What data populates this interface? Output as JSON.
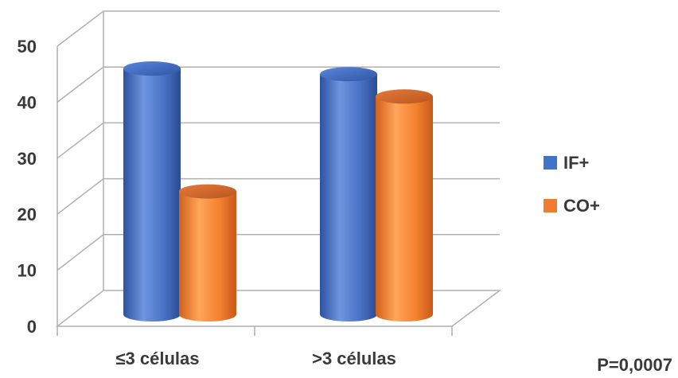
{
  "chart_data": {
    "type": "bar",
    "style": "3d-cylinder",
    "categories": [
      "≤3 células",
      ">3 células"
    ],
    "series": [
      {
        "name": "IF+",
        "values": [
          44,
          43
        ],
        "color": "#4472c4"
      },
      {
        "name": "CO+",
        "values": [
          22,
          39
        ],
        "color": "#ed7d31"
      }
    ],
    "yticks": [
      0,
      10,
      20,
      30,
      40,
      50
    ],
    "ylim": [
      0,
      50
    ],
    "grid": true,
    "legend_position": "right",
    "annotation": "P=0,0007"
  }
}
